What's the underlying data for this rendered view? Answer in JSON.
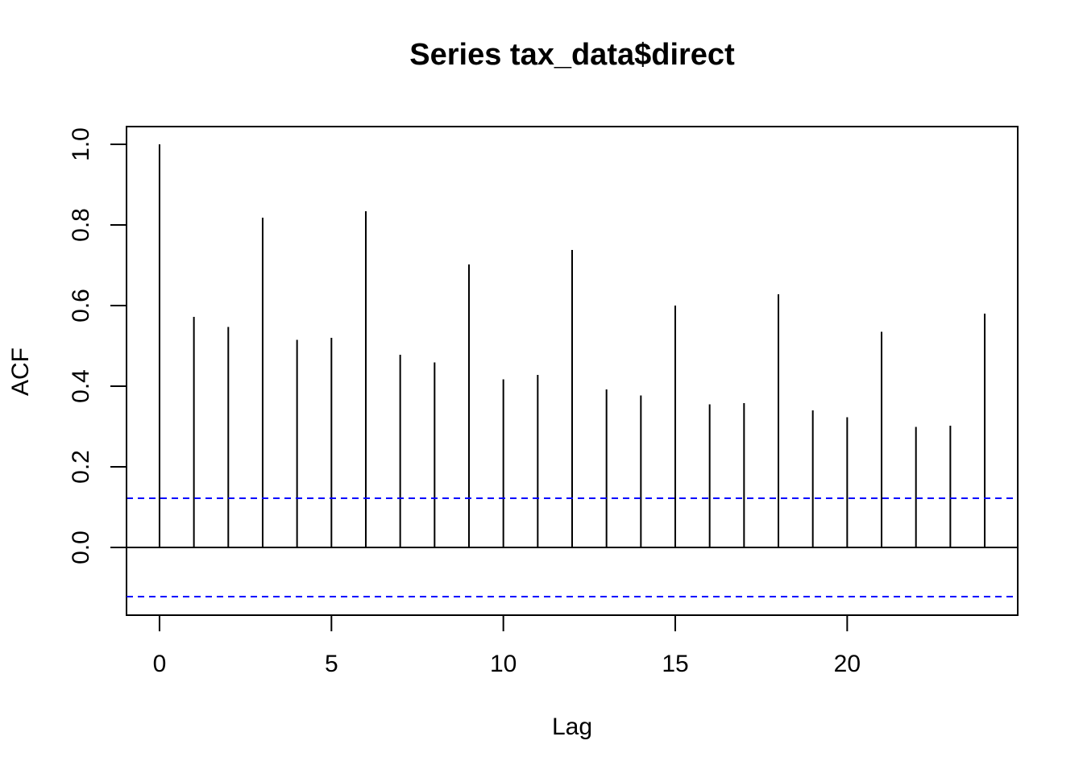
{
  "chart_data": {
    "type": "bar",
    "title": "Series  tax_data$direct",
    "xlabel": "Lag",
    "ylabel": "ACF",
    "x": [
      0,
      1,
      2,
      3,
      4,
      5,
      6,
      7,
      8,
      9,
      10,
      11,
      12,
      13,
      14,
      15,
      16,
      17,
      18,
      19,
      20,
      21,
      22,
      23,
      24
    ],
    "values": [
      1.0,
      0.572,
      0.547,
      0.818,
      0.515,
      0.52,
      0.834,
      0.478,
      0.459,
      0.702,
      0.417,
      0.428,
      0.738,
      0.392,
      0.377,
      0.6,
      0.355,
      0.358,
      0.628,
      0.34,
      0.323,
      0.535,
      0.299,
      0.302,
      0.58
    ],
    "xlim": [
      -0.96,
      24.96
    ],
    "ylim": [
      -0.168,
      1.044
    ],
    "x_ticks": [
      0,
      5,
      10,
      15,
      20
    ],
    "x_tick_labels": [
      "0",
      "5",
      "10",
      "15",
      "20"
    ],
    "y_ticks": [
      0.0,
      0.2,
      0.4,
      0.6,
      0.8,
      1.0
    ],
    "y_tick_labels": [
      "0.0",
      "0.2",
      "0.4",
      "0.6",
      "0.8",
      "1.0"
    ],
    "confidence_bound": 0.122,
    "zero_line": true,
    "grid": false,
    "colors": {
      "bars": "#000000",
      "confidence_lines": "#0000ff",
      "frame": "#000000",
      "background": "#ffffff"
    }
  }
}
